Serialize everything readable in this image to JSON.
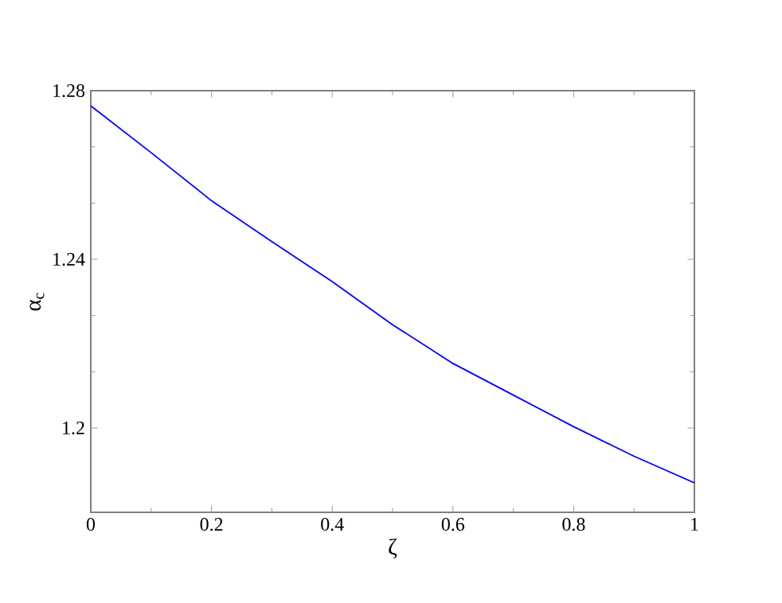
{
  "chart_data": {
    "type": "line",
    "xlabel": "ζ",
    "ylabel": "α$_{c}$",
    "x": [
      0,
      0.1,
      0.2,
      0.3,
      0.4,
      0.5,
      0.6,
      0.7,
      0.8,
      0.9,
      1
    ],
    "series": [
      {
        "color": "#0000ff",
        "values": [
          1.2764,
          1.2653,
          1.2539,
          1.2442,
          1.2347,
          1.2245,
          1.2153,
          1.2078,
          1.2003,
          1.1933,
          1.187
        ]
      }
    ],
    "xlim": [
      0,
      1
    ],
    "ylim": [
      1.18,
      1.28
    ],
    "xticks": [
      0,
      0.2,
      0.4,
      0.6,
      0.8,
      1
    ],
    "yticks": [
      1.2,
      1.24,
      1.28
    ],
    "marker": "none",
    "line_style": "solid"
  }
}
